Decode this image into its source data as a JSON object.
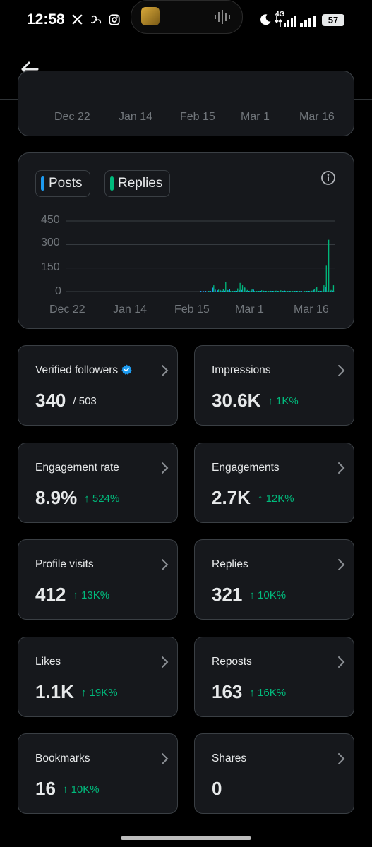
{
  "status_bar": {
    "time": "12:58",
    "icons": [
      "x-logo-icon",
      "fan-icon",
      "instagram-icon"
    ],
    "network": "4G",
    "battery": "57"
  },
  "top_chart": {
    "x_ticks": [
      "Dec 22",
      "Jan 14",
      "Feb 15",
      "Mar 1",
      "Mar 16"
    ]
  },
  "chart_data": {
    "type": "bar",
    "legend": [
      {
        "name": "Posts",
        "color": "#1d9bf0"
      },
      {
        "name": "Replies",
        "color": "#00ba7c"
      }
    ],
    "x_ticks": [
      "Dec 22",
      "Jan 14",
      "Feb 15",
      "Mar 1",
      "Mar 16"
    ],
    "y_ticks": [
      "450",
      "300",
      "150",
      "0"
    ],
    "ylim": [
      0,
      450
    ],
    "grid": true,
    "series": [
      {
        "name": "Posts",
        "color": "#1d9bf0",
        "values": [
          0,
          0,
          0,
          0,
          0,
          0,
          0,
          0,
          0,
          0,
          0,
          0,
          0,
          0,
          0,
          0,
          0,
          0,
          0,
          0,
          0,
          0,
          0,
          0,
          0,
          0,
          0,
          0,
          0,
          0,
          0,
          0,
          0,
          0,
          0,
          0,
          0,
          0,
          0,
          0,
          0,
          0,
          0,
          0,
          0,
          0,
          0,
          0,
          0,
          0,
          0,
          0,
          0,
          0,
          0,
          0,
          1,
          2,
          1,
          4,
          2,
          25,
          12,
          8,
          10,
          5,
          6,
          10,
          14,
          4,
          3,
          2,
          8,
          10,
          28,
          5,
          3,
          6,
          12,
          3,
          2,
          4,
          6,
          2,
          1,
          5,
          3,
          2,
          4,
          3,
          2,
          6,
          4,
          2,
          1,
          2,
          3,
          2,
          1,
          0,
          2,
          2,
          4,
          10,
          22,
          4,
          3,
          12,
          28,
          6,
          2,
          6
        ]
      },
      {
        "name": "Replies",
        "color": "#00ba7c",
        "values": [
          0,
          0,
          0,
          0,
          0,
          0,
          0,
          0,
          0,
          0,
          0,
          0,
          0,
          0,
          0,
          0,
          0,
          0,
          0,
          0,
          0,
          0,
          0,
          0,
          0,
          0,
          0,
          0,
          0,
          0,
          0,
          0,
          0,
          0,
          0,
          0,
          0,
          0,
          0,
          0,
          0,
          0,
          0,
          0,
          0,
          0,
          0,
          0,
          0,
          0,
          0,
          0,
          0,
          0,
          0,
          0,
          0,
          0,
          0,
          2,
          0,
          40,
          0,
          12,
          6,
          15,
          60,
          8,
          3,
          2,
          5,
          20,
          55,
          40,
          25,
          10,
          5,
          15,
          4,
          2,
          3,
          8,
          2,
          1,
          3,
          2,
          1,
          6,
          3,
          8,
          2,
          4,
          1,
          2,
          1,
          3,
          2,
          1,
          0,
          1,
          3,
          2,
          6,
          18,
          30,
          5,
          5,
          40,
          165,
          330,
          10,
          40
        ]
      }
    ]
  },
  "metrics": [
    {
      "label": "Verified followers",
      "value": "340",
      "sub": "/ 503",
      "delta": "",
      "verified": true
    },
    {
      "label": "Impressions",
      "value": "30.6K",
      "sub": "",
      "delta": "↑ 1K%"
    },
    {
      "label": "Engagement rate",
      "value": "8.9%",
      "sub": "",
      "delta": "↑ 524%"
    },
    {
      "label": "Engagements",
      "value": "2.7K",
      "sub": "",
      "delta": "↑ 12K%"
    },
    {
      "label": "Profile visits",
      "value": "412",
      "sub": "",
      "delta": "↑ 13K%"
    },
    {
      "label": "Replies",
      "value": "321",
      "sub": "",
      "delta": "↑ 10K%"
    },
    {
      "label": "Likes",
      "value": "1.1K",
      "sub": "",
      "delta": "↑ 19K%"
    },
    {
      "label": "Reposts",
      "value": "163",
      "sub": "",
      "delta": "↑ 16K%"
    },
    {
      "label": "Bookmarks",
      "value": "16",
      "sub": "",
      "delta": "↑ 10K%"
    },
    {
      "label": "Shares",
      "value": "0",
      "sub": "",
      "delta": ""
    }
  ]
}
